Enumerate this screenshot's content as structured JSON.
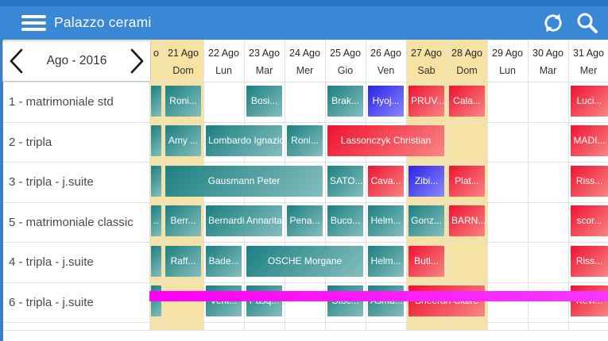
{
  "app_bar": {
    "title": "Palazzo cerami"
  },
  "date_nav": {
    "label": "Ago - 2016"
  },
  "day_header": {
    "clipped_prev_day": {
      "date_fragment": "o",
      "weekend": true
    },
    "days": [
      {
        "date": "21 Ago",
        "dow": "Dom",
        "weekend": true
      },
      {
        "date": "22 Ago",
        "dow": "Lun",
        "weekend": false
      },
      {
        "date": "23 Ago",
        "dow": "Mar",
        "weekend": false
      },
      {
        "date": "24 Ago",
        "dow": "Mer",
        "weekend": false
      },
      {
        "date": "25 Ago",
        "dow": "Gio",
        "weekend": false
      },
      {
        "date": "26 Ago",
        "dow": "Ven",
        "weekend": false
      },
      {
        "date": "27 Ago",
        "dow": "Sab",
        "weekend": true
      },
      {
        "date": "28 Ago",
        "dow": "Dom",
        "weekend": true
      },
      {
        "date": "29 Ago",
        "dow": "Lun",
        "weekend": false
      },
      {
        "date": "30 Ago",
        "dow": "Mar",
        "weekend": false
      },
      {
        "date": "31 Ago",
        "dow": "Mer",
        "weekend": false
      }
    ]
  },
  "colors": {
    "weekend_column": "#f6e2a2",
    "booking_teal": "#1b7f81",
    "booking_red": "#ee1330",
    "booking_blue": "#2a23e4",
    "footer_magenta": "#ff00f2",
    "header_blue": "#3a87d6"
  },
  "rooms": [
    {
      "label": "1 - matrimoniale std",
      "bookings": [
        {
          "name": "",
          "type": "stub",
          "color": "teal"
        },
        {
          "name": "Roni...",
          "start": 1,
          "span": 1,
          "color": "teal"
        },
        {
          "name": "Bosi...",
          "start": 3,
          "span": 1,
          "color": "teal"
        },
        {
          "name": "Brak...",
          "start": 5,
          "span": 1,
          "color": "teal"
        },
        {
          "name": "Hyoj...",
          "start": 6,
          "span": 1,
          "color": "blue"
        },
        {
          "name": "PRUV...",
          "start": 7,
          "span": 1,
          "color": "red"
        },
        {
          "name": "Cala...",
          "start": 8,
          "span": 1,
          "color": "red"
        },
        {
          "name": "Luci...",
          "start": 11,
          "span": 1,
          "color": "red",
          "clipped": true
        }
      ]
    },
    {
      "label": "2 - tripla",
      "bookings": [
        {
          "name": "",
          "type": "stub",
          "color": "teal"
        },
        {
          "name": "Amy ...",
          "start": 1,
          "span": 1,
          "color": "teal"
        },
        {
          "name": "Lombardo Ignazio",
          "start": 2,
          "span": 2,
          "color": "teal"
        },
        {
          "name": "Roni...",
          "start": 4,
          "span": 1,
          "color": "teal"
        },
        {
          "name": "Lassonczyk Christian",
          "start": 5,
          "span": 3,
          "color": "red"
        },
        {
          "name": "MADI...",
          "start": 11,
          "span": 1,
          "color": "red",
          "clipped": true
        }
      ]
    },
    {
      "label": "3 - tripla - j.suite",
      "bookings": [
        {
          "name": "",
          "type": "stub",
          "color": "teal"
        },
        {
          "name": "Gausmann Peter",
          "start": 1,
          "span": 4,
          "color": "teal"
        },
        {
          "name": "SATO...",
          "start": 5,
          "span": 1,
          "color": "teal"
        },
        {
          "name": "Cava...",
          "start": 6,
          "span": 1,
          "color": "red"
        },
        {
          "name": "Zibi...",
          "start": 7,
          "span": 1,
          "color": "blue"
        },
        {
          "name": "Plat...",
          "start": 8,
          "span": 1,
          "color": "red"
        },
        {
          "name": "Riss...",
          "start": 11,
          "span": 1,
          "color": "red",
          "clipped": true
        }
      ]
    },
    {
      "label": "5 - matrimoniale classic",
      "bookings": [
        {
          "name": "..",
          "type": "stub",
          "color": "teal"
        },
        {
          "name": "Berr...",
          "start": 1,
          "span": 1,
          "color": "teal"
        },
        {
          "name": "Bernardi Annarita",
          "start": 2,
          "span": 2,
          "color": "teal"
        },
        {
          "name": "Pena...",
          "start": 4,
          "span": 1,
          "color": "teal"
        },
        {
          "name": "Buco...",
          "start": 5,
          "span": 1,
          "color": "teal"
        },
        {
          "name": "Helm...",
          "start": 6,
          "span": 1,
          "color": "teal"
        },
        {
          "name": "Gonz...",
          "start": 7,
          "span": 1,
          "color": "teal"
        },
        {
          "name": "BARN...",
          "start": 8,
          "span": 1,
          "color": "red"
        },
        {
          "name": "scor...",
          "start": 11,
          "span": 1,
          "color": "red",
          "clipped": true
        }
      ]
    },
    {
      "label": "4 - tripla - j.suite",
      "bookings": [
        {
          "name": "",
          "type": "stub",
          "color": "teal"
        },
        {
          "name": "Raff...",
          "start": 1,
          "span": 1,
          "color": "teal"
        },
        {
          "name": "Bade...",
          "start": 2,
          "span": 1,
          "color": "teal"
        },
        {
          "name": "OSCHE Morgane",
          "start": 3,
          "span": 3,
          "color": "teal"
        },
        {
          "name": "Helm...",
          "start": 6,
          "span": 1,
          "color": "teal"
        },
        {
          "name": "Butl...",
          "start": 7,
          "span": 1,
          "color": "red"
        },
        {
          "name": "Riss...",
          "start": 11,
          "span": 1,
          "color": "red",
          "clipped": true
        }
      ]
    },
    {
      "label": "6 - tripla - j.suite",
      "bookings": [
        {
          "name": "",
          "type": "stub",
          "color": "teal"
        },
        {
          "name": "Vent...",
          "start": 2,
          "span": 1,
          "color": "teal"
        },
        {
          "name": "Pasq...",
          "start": 3,
          "span": 1,
          "color": "teal"
        },
        {
          "name": "Stoc...",
          "start": 5,
          "span": 1,
          "color": "teal"
        },
        {
          "name": "Asmu...",
          "start": 6,
          "span": 1,
          "color": "teal"
        },
        {
          "name": "Sheeran Claire",
          "start": 7,
          "span": 2,
          "color": "red"
        },
        {
          "name": "Kevi...",
          "start": 11,
          "span": 1,
          "color": "red",
          "clipped": true
        }
      ]
    }
  ]
}
